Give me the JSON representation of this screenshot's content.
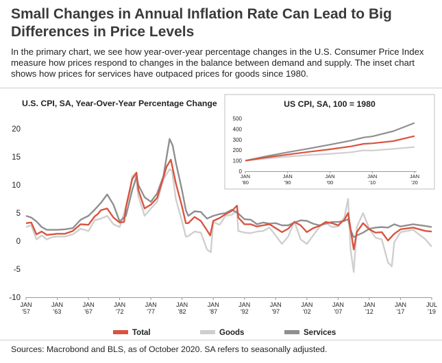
{
  "title": "Small Changes in Annual Inflation Rate Can Lead to Big Differences in Price Levels",
  "subtitle": "In the primary chart, we see how year-over-year percentage changes in the U.S. Consumer Price Index measure how prices respond to changes in the balance between demand and supply. The inset chart shows how prices for services have outpaced prices for goods since 1980.",
  "source": "Sources: Macrobond and BLS, as of October 2020. SA refers to seasonally adjusted.",
  "colors": {
    "total": "#d9533f",
    "goods": "#cfcfcf",
    "services": "#8f8f8f",
    "text": "#222222",
    "grid": "#e6e6e6"
  },
  "chart_data": [
    {
      "type": "line",
      "title": "U.S. CPI, SA, Year-Over-Year Percentage Change",
      "ylim": [
        -10,
        20
      ],
      "yticks": [
        -10,
        -5,
        0,
        5,
        10,
        15,
        20
      ],
      "x_tick_labels": [
        [
          "JAN",
          "'57"
        ],
        [
          "JAN",
          "'63"
        ],
        [
          "JAN",
          "'67"
        ],
        [
          "JAN",
          "'72"
        ],
        [
          "JAN",
          "'77"
        ],
        [
          "JAN",
          "'82"
        ],
        [
          "JAN",
          "'87"
        ],
        [
          "JAN",
          "'92"
        ],
        [
          "JAN",
          "'97"
        ],
        [
          "JAN",
          "'02"
        ],
        [
          "JAN",
          "'07"
        ],
        [
          "JAN",
          "'12"
        ],
        [
          "JAN",
          "'17"
        ],
        [
          "JUL",
          "'19"
        ]
      ],
      "xlim": [
        1957,
        2019.5
      ],
      "grid": "none",
      "series": [
        {
          "name": "Total",
          "x": [
            1957,
            1958,
            1959,
            1960,
            1961,
            1962,
            1963,
            1964,
            1965,
            1966,
            1967,
            1968,
            1968.5,
            1969,
            1970,
            1971,
            1972,
            1972.7,
            1973,
            1974,
            1974.7,
            1975,
            1976,
            1977,
            1978,
            1979,
            1979.5,
            1980.2,
            1981,
            1982,
            1982.6,
            1983,
            1984,
            1985,
            1986,
            1986.5,
            1987,
            1988,
            1989,
            1990,
            1990.8,
            1991,
            1992,
            1993,
            1994,
            1995,
            1996,
            1997,
            1998,
            1999,
            2000,
            2001,
            2002,
            2003,
            2004,
            2005,
            2006,
            2007,
            2008,
            2008.6,
            2009.5,
            2010,
            2011,
            2012,
            2013,
            2014,
            2015,
            2016,
            2017,
            2018,
            2019,
            2019.5
          ],
          "values": [
            3.2,
            3.3,
            1.2,
            1.7,
            1.1,
            1.2,
            1.3,
            1.3,
            1.8,
            3.0,
            2.9,
            4.4,
            4.8,
            5.5,
            5.8,
            4.2,
            3.3,
            3.4,
            6.0,
            11.0,
            12.2,
            9.1,
            5.8,
            6.5,
            7.7,
            11.3,
            13.2,
            14.5,
            10.3,
            6.1,
            3.2,
            3.2,
            4.3,
            3.6,
            1.9,
            1.0,
            3.6,
            4.1,
            4.8,
            5.4,
            6.3,
            4.2,
            3.0,
            3.0,
            2.6,
            2.8,
            3.0,
            2.3,
            1.6,
            2.2,
            3.4,
            2.8,
            1.6,
            2.3,
            2.7,
            3.4,
            3.2,
            2.8,
            3.8,
            5.0,
            -1.5,
            1.6,
            3.2,
            2.1,
            1.5,
            1.6,
            0.1,
            1.3,
            2.1,
            2.4,
            1.8,
            1.7
          ]
        },
        {
          "name": "Goods",
          "x": [
            1957,
            1958,
            1959,
            1960,
            1961,
            1962,
            1963,
            1964,
            1965,
            1966,
            1967,
            1968,
            1969,
            1970,
            1971,
            1972,
            1973,
            1973.7,
            1974,
            1974.5,
            1975,
            1976,
            1977,
            1978,
            1979,
            1980,
            1980.4,
            1981,
            1982,
            1982.6,
            1983,
            1984,
            1985,
            1986,
            1986.6,
            1987,
            1988,
            1989,
            1990,
            1990.8,
            1991,
            1992,
            1993,
            1994,
            1995,
            1996,
            1997,
            1998,
            1999,
            2000,
            2001,
            2002,
            2003,
            2004,
            2005,
            2006,
            2007,
            2008,
            2008.6,
            2009,
            2009.5,
            2010,
            2011,
            2012,
            2013,
            2014,
            2015,
            2015.6,
            2016,
            2017,
            2018,
            2019,
            2019.5
          ],
          "values": [
            2.5,
            2.8,
            0.3,
            1.0,
            0.3,
            0.7,
            0.8,
            0.8,
            1.2,
            2.2,
            1.8,
            3.7,
            4.0,
            4.5,
            3.0,
            2.5,
            6.0,
            9.0,
            11.5,
            12.0,
            8.0,
            4.5,
            5.8,
            7.0,
            11.0,
            12.8,
            12.5,
            7.5,
            3.5,
            0.8,
            0.9,
            1.7,
            1.5,
            -1.5,
            -2.0,
            3.4,
            2.9,
            4.5,
            4.7,
            5.5,
            1.8,
            1.5,
            1.4,
            1.7,
            1.8,
            2.4,
            1.0,
            -0.5,
            0.8,
            3.5,
            0.3,
            -0.5,
            1.0,
            2.5,
            3.3,
            2.5,
            2.6,
            4.2,
            7.5,
            -1.5,
            -5.5,
            2.5,
            5.0,
            2.2,
            0.6,
            0.3,
            -3.8,
            -4.5,
            -0.2,
            1.6,
            2.0,
            0.3,
            -1.0
          ]
        },
        {
          "name": "Services",
          "x": [
            1957,
            1958,
            1959,
            1960,
            1961,
            1962,
            1963,
            1964,
            1965,
            1966,
            1967,
            1968,
            1969,
            1970,
            1971,
            1972,
            1973,
            1974,
            1974.7,
            1975,
            1976,
            1977,
            1978,
            1979,
            1980,
            1980.5,
            1981,
            1982,
            1982.6,
            1983,
            1984,
            1985,
            1986,
            1987,
            1988,
            1989,
            1990,
            1991,
            1992,
            1993,
            1994,
            1995,
            1996,
            1997,
            1998,
            1999,
            2000,
            2001,
            2002,
            2003,
            2004,
            2005,
            2006,
            2007,
            2008,
            2008.6,
            2009,
            2009.5,
            2010,
            2011,
            2012,
            2013,
            2014,
            2015,
            2016,
            2017,
            2018,
            2019,
            2019.5
          ],
          "values": [
            4.5,
            4.2,
            3.5,
            2.5,
            2.0,
            2.0,
            2.0,
            2.1,
            2.3,
            3.8,
            4.5,
            5.6,
            6.8,
            8.3,
            6.5,
            3.5,
            4.5,
            9.0,
            11.5,
            10.0,
            7.8,
            7.0,
            8.5,
            11.5,
            18.2,
            17.0,
            14.0,
            9.0,
            5.5,
            4.5,
            5.3,
            5.2,
            4.0,
            4.5,
            4.8,
            5.0,
            5.6,
            4.9,
            3.9,
            3.8,
            3.0,
            3.3,
            3.1,
            3.2,
            2.8,
            2.8,
            3.3,
            3.7,
            3.6,
            3.1,
            2.8,
            3.1,
            3.4,
            3.4,
            3.6,
            3.9,
            2.0,
            0.7,
            1.0,
            1.5,
            2.2,
            2.4,
            2.5,
            2.4,
            3.0,
            2.6,
            3.0,
            2.7,
            2.5
          ]
        }
      ],
      "legend": [
        "Total",
        "Goods",
        "Services"
      ],
      "legend_position": "bottom"
    },
    {
      "type": "line",
      "title": "US CPI, SA, 100 = 1980",
      "ylim": [
        0,
        500
      ],
      "yticks": [
        0,
        100,
        200,
        300,
        400,
        500
      ],
      "xlim": [
        1980,
        2020.5
      ],
      "x_tick_labels": [
        [
          "JAN",
          "'80"
        ],
        [
          "JAN",
          "'90"
        ],
        [
          "JAN",
          "'00"
        ],
        [
          "JAN",
          "'10"
        ],
        [
          "JAN",
          "'20"
        ]
      ],
      "series": [
        {
          "name": "Total",
          "x": [
            1980,
            1985,
            1990,
            1995,
            2000,
            2005,
            2008,
            2010,
            2015,
            2020
          ],
          "values": [
            100,
            131,
            158,
            184,
            208,
            236,
            260,
            264,
            286,
            333
          ]
        },
        {
          "name": "Goods",
          "x": [
            1980,
            1985,
            1990,
            1995,
            2000,
            2005,
            2008,
            2010,
            2015,
            2020
          ],
          "values": [
            100,
            120,
            139,
            153,
            165,
            180,
            198,
            196,
            212,
            229
          ]
        },
        {
          "name": "Services",
          "x": [
            1980,
            1985,
            1990,
            1995,
            2000,
            2005,
            2008,
            2010,
            2015,
            2020
          ],
          "values": [
            100,
            142,
            180,
            215,
            252,
            291,
            320,
            330,
            380,
            458
          ]
        }
      ],
      "grid": "none"
    }
  ]
}
